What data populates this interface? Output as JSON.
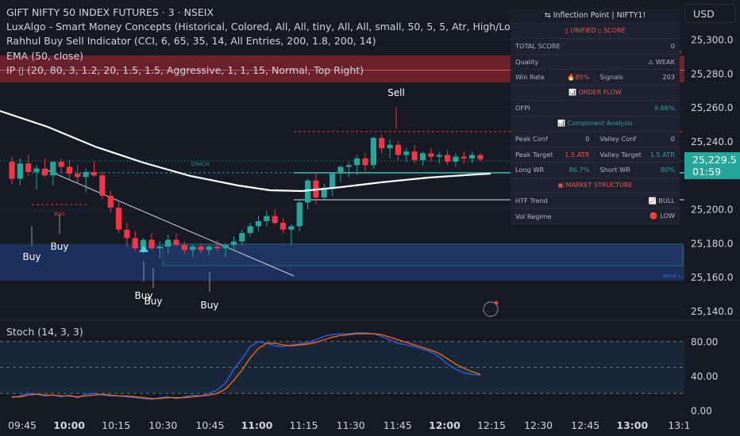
{
  "chart_header": {
    "title": "GIFT NIFTY 50 INDEX FUTURES · 3 · NSEIX",
    "indicators": [
      "LuxAlgo - Smart Money Concepts (Historical, Colored, All, All, tiny, All, All, small, 50, 5, 5, Atr, High/Low, 3, 0.1, tiny, , 1, ▯▯▯, ▯▯▯, ▯▯▯)",
      "Rahhul Buy Sell Indicator (CCI, 6, 65, 35, 14, All Entries, 200, 1.8, 200, 14)",
      "EMA (50, close)",
      "IP ▯ (20, 80, 3, 1.2, 20, 1.5, 1.5, Aggressive, 1, 1, 15, Normal, Top Right)"
    ]
  },
  "currency_button": "USD",
  "current_price": {
    "value": "25,229.5",
    "countdown": "01:59"
  },
  "price_axis": [
    "25,300.0",
    "25,280.0",
    "25,260.0",
    "25,240.0",
    "25,200.0",
    "25,180.0",
    "25,160.0",
    "25,140.0"
  ],
  "time_axis": [
    {
      "label": "09:45",
      "bold": false
    },
    {
      "label": "10:00",
      "bold": true
    },
    {
      "label": "10:15",
      "bold": false
    },
    {
      "label": "10:30",
      "bold": false
    },
    {
      "label": "10:45",
      "bold": false
    },
    {
      "label": "11:00",
      "bold": true
    },
    {
      "label": "11:15",
      "bold": false
    },
    {
      "label": "11:30",
      "bold": false
    },
    {
      "label": "11:45",
      "bold": false
    },
    {
      "label": "12:00",
      "bold": true
    },
    {
      "label": "12:15",
      "bold": false
    },
    {
      "label": "12:30",
      "bold": false
    },
    {
      "label": "12:45",
      "bold": false
    },
    {
      "label": "13:00",
      "bold": true
    },
    {
      "label": "13:1",
      "bold": false
    }
  ],
  "stoch": {
    "label": "Stoch (14, 3, 3)",
    "axis": [
      "80.00",
      "40.00",
      "0.00"
    ]
  },
  "chart_labels": {
    "choch": "CHoCH",
    "bos": "BOS",
    "strong": "Strong H",
    "weak": "Weak L"
  },
  "signals": {
    "buy": "Buy",
    "sell": "Sell"
  },
  "colors": {
    "up": "#26a69a",
    "down": "#f23645",
    "ema": "#ffffff",
    "zone": "#1e3a6e",
    "resistance": "#b22833"
  },
  "ohlc": [
    [
      25228,
      25231,
      25215,
      25218
    ],
    [
      25218,
      25230,
      25214,
      25227
    ],
    [
      25227,
      25232,
      25220,
      25222
    ],
    [
      25222,
      25226,
      25212,
      25224
    ],
    [
      25224,
      25230,
      25219,
      25220
    ],
    [
      25220,
      25228,
      25214,
      25228
    ],
    [
      25228,
      25230,
      25222,
      25225
    ],
    [
      25225,
      25229,
      25218,
      25221
    ],
    [
      25221,
      25226,
      25215,
      25219
    ],
    [
      25219,
      25224,
      25210,
      25222
    ],
    [
      25222,
      25228,
      25219,
      25220
    ],
    [
      25220,
      25222,
      25206,
      25208
    ],
    [
      25208,
      25211,
      25198,
      25201
    ],
    [
      25201,
      25205,
      25186,
      25188
    ],
    [
      25188,
      25192,
      25178,
      25183
    ],
    [
      25183,
      25187,
      25175,
      25177
    ],
    [
      25177,
      25183,
      25174,
      25182
    ],
    [
      25182,
      25186,
      25176,
      25177
    ],
    [
      25177,
      25181,
      25171,
      25178
    ],
    [
      25178,
      25185,
      25174,
      25182
    ],
    [
      25182,
      25186,
      25178,
      25179
    ],
    [
      25179,
      25181,
      25174,
      25176
    ],
    [
      25176,
      25179,
      25172,
      25178
    ],
    [
      25178,
      25180,
      25174,
      25176
    ],
    [
      25176,
      25179,
      25173,
      25178
    ],
    [
      25178,
      25182,
      25175,
      25177
    ],
    [
      25177,
      25180,
      25172,
      25179
    ],
    [
      25179,
      25184,
      25176,
      25181
    ],
    [
      25181,
      25188,
      25179,
      25186
    ],
    [
      25186,
      25192,
      25184,
      25190
    ],
    [
      25190,
      25196,
      25187,
      25193
    ],
    [
      25193,
      25199,
      25190,
      25196
    ],
    [
      25196,
      25200,
      25191,
      25192
    ],
    [
      25192,
      25195,
      25186,
      25188
    ],
    [
      25188,
      25191,
      25179,
      25190
    ],
    [
      25190,
      25206,
      25187,
      25204
    ],
    [
      25204,
      25218,
      25200,
      25217
    ],
    [
      25217,
      25222,
      25203,
      25207
    ],
    [
      25207,
      25215,
      25205,
      25212
    ],
    [
      25212,
      25222,
      25208,
      25221
    ],
    [
      25221,
      25226,
      25216,
      25225
    ],
    [
      25225,
      25228,
      25219,
      25226
    ],
    [
      25226,
      25232,
      25220,
      25230
    ],
    [
      25230,
      25233,
      25221,
      25226
    ],
    [
      25226,
      25243,
      25224,
      25242
    ],
    [
      25242,
      25244,
      25233,
      25236
    ],
    [
      25236,
      25241,
      25230,
      25238
    ],
    [
      25238,
      25240,
      25229,
      25232
    ],
    [
      25232,
      25236,
      25228,
      25234
    ],
    [
      25234,
      25238,
      25227,
      25229
    ],
    [
      25229,
      25234,
      25226,
      25233
    ],
    [
      25233,
      25236,
      25228,
      25231
    ],
    [
      25231,
      25234,
      25227,
      25232
    ],
    [
      25232,
      25235,
      25226,
      25228
    ],
    [
      25228,
      25233,
      25225,
      25231
    ],
    [
      25231,
      25234,
      25227,
      25230
    ],
    [
      25230,
      25234,
      25227,
      25232
    ],
    [
      25232,
      25233,
      25228,
      25229.5
    ]
  ],
  "stoch_k": [
    15,
    17,
    20,
    19,
    17,
    18,
    16,
    18,
    15,
    19,
    20,
    18,
    17,
    17,
    16,
    15,
    14,
    13,
    15,
    16,
    14,
    16,
    18,
    17,
    20,
    24,
    32,
    48,
    60,
    74,
    80,
    78,
    75,
    74,
    76,
    77,
    79,
    82,
    86,
    88,
    89,
    89,
    90,
    90,
    89,
    86,
    82,
    78,
    76,
    74,
    71,
    68,
    62,
    54,
    48,
    44,
    42,
    41
  ],
  "stoch_d": [
    16,
    16,
    18,
    19,
    18,
    18,
    17,
    17,
    16,
    17,
    18,
    19,
    18,
    17,
    17,
    16,
    15,
    14,
    14,
    15,
    15,
    15,
    16,
    17,
    18,
    20,
    25,
    35,
    47,
    61,
    72,
    78,
    78,
    76,
    75,
    76,
    77,
    79,
    82,
    85,
    87,
    88,
    89,
    89,
    89,
    88,
    85,
    82,
    79,
    76,
    73,
    70,
    66,
    60,
    54,
    49,
    45,
    42
  ]
}
